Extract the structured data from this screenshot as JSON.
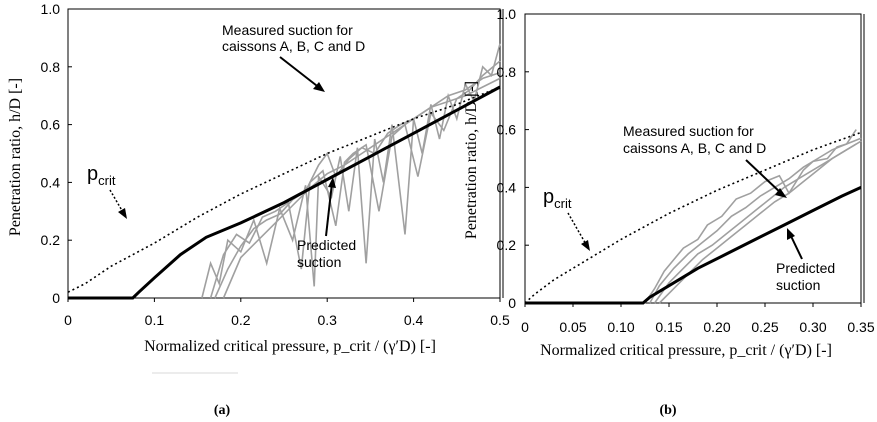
{
  "chart_data": [
    {
      "type": "line",
      "panel_label": "(a)",
      "xlabel": "Normalized critical pressure, p_crit / (γ′D) [-]",
      "ylabel": "Penetration ratio, h/D [-]",
      "xlim": [
        0,
        0.5
      ],
      "ylim": [
        0,
        1.0
      ],
      "x_ticks": [
        "0",
        "0.1",
        "0.2",
        "0.3",
        "0.4",
        "0.5"
      ],
      "y_ticks": [
        "0",
        "0.2",
        "0.4",
        "0.6",
        "0.8",
        "1.0"
      ],
      "grid": false,
      "annotations": {
        "measured_line1": "Measured suction for",
        "measured_line2": "caissons A, B, C and D",
        "predicted_line1": "Predicted",
        "predicted_line2": "suction",
        "pcrit_main": "p",
        "pcrit_sub": "crit"
      },
      "series": [
        {
          "role": "predicted",
          "color": "#000000",
          "x": [
            0.0,
            0.075,
            0.082,
            0.1,
            0.13,
            0.16,
            0.2,
            0.25,
            0.3,
            0.35,
            0.4,
            0.45,
            0.5
          ],
          "y": [
            0.0,
            0.0,
            0.02,
            0.07,
            0.15,
            0.21,
            0.26,
            0.33,
            0.41,
            0.49,
            0.57,
            0.65,
            0.73
          ]
        },
        {
          "role": "p_crit",
          "color": "#000000",
          "x": [
            0.0,
            0.02,
            0.05,
            0.1,
            0.15,
            0.2,
            0.25,
            0.3,
            0.35,
            0.4,
            0.45,
            0.5
          ],
          "y": [
            0.02,
            0.05,
            0.11,
            0.19,
            0.28,
            0.36,
            0.43,
            0.5,
            0.56,
            0.62,
            0.67,
            0.73
          ]
        },
        {
          "role": "measured",
          "color": "#a0a0a0",
          "x": [
            0.155,
            0.165,
            0.175,
            0.185,
            0.2,
            0.215,
            0.23,
            0.245,
            0.26,
            0.275,
            0.285,
            0.29,
            0.305,
            0.315,
            0.325,
            0.335,
            0.345,
            0.355,
            0.365,
            0.375,
            0.39,
            0.4,
            0.41,
            0.42,
            0.43,
            0.44,
            0.45,
            0.46,
            0.47,
            0.48,
            0.49,
            0.5
          ],
          "y": [
            0.0,
            0.12,
            0.05,
            0.2,
            0.16,
            0.27,
            0.12,
            0.31,
            0.2,
            0.39,
            0.04,
            0.42,
            0.35,
            0.49,
            0.3,
            0.52,
            0.12,
            0.55,
            0.4,
            0.6,
            0.22,
            0.62,
            0.5,
            0.67,
            0.55,
            0.7,
            0.62,
            0.74,
            0.68,
            0.8,
            0.77,
            0.88
          ]
        },
        {
          "role": "measured",
          "color": "#a0a0a0",
          "x": [
            0.165,
            0.18,
            0.195,
            0.21,
            0.225,
            0.24,
            0.255,
            0.27,
            0.28,
            0.295,
            0.31,
            0.32,
            0.33,
            0.345,
            0.36,
            0.375,
            0.39,
            0.405,
            0.42,
            0.435,
            0.45,
            0.465,
            0.48,
            0.5
          ],
          "y": [
            0.0,
            0.15,
            0.22,
            0.19,
            0.28,
            0.3,
            0.33,
            0.1,
            0.4,
            0.44,
            0.25,
            0.47,
            0.5,
            0.53,
            0.3,
            0.56,
            0.6,
            0.42,
            0.64,
            0.58,
            0.69,
            0.72,
            0.77,
            0.82
          ]
        },
        {
          "role": "measured",
          "color": "#a0a0a0",
          "x": [
            0.17,
            0.185,
            0.2,
            0.215,
            0.23,
            0.245,
            0.26,
            0.275,
            0.29,
            0.3,
            0.31,
            0.325,
            0.34,
            0.355,
            0.37,
            0.385,
            0.4,
            0.42,
            0.44,
            0.46,
            0.48,
            0.5
          ],
          "y": [
            0.0,
            0.1,
            0.18,
            0.24,
            0.27,
            0.29,
            0.34,
            0.37,
            0.46,
            0.5,
            0.42,
            0.48,
            0.52,
            0.5,
            0.57,
            0.6,
            0.62,
            0.66,
            0.68,
            0.7,
            0.73,
            0.76
          ]
        },
        {
          "role": "measured",
          "color": "#a0a0a0",
          "x": [
            0.18,
            0.2,
            0.22,
            0.24,
            0.26,
            0.28,
            0.3,
            0.32,
            0.34,
            0.36,
            0.38,
            0.4,
            0.42,
            0.44,
            0.46,
            0.48,
            0.5
          ],
          "y": [
            0.0,
            0.14,
            0.2,
            0.26,
            0.32,
            0.38,
            0.43,
            0.46,
            0.5,
            0.54,
            0.58,
            0.62,
            0.66,
            0.7,
            0.72,
            0.76,
            0.78
          ]
        }
      ]
    },
    {
      "type": "line",
      "panel_label": "(b)",
      "xlabel": "Normalized critical pressure, p_crit / (γ′D) [-]",
      "ylabel": "Penetration ratio, h/D [-]",
      "xlim": [
        0,
        0.35
      ],
      "ylim": [
        0,
        1.0
      ],
      "x_ticks": [
        "0",
        "0.05",
        "0.10",
        "0.15",
        "0.20",
        "0.25",
        "0.30",
        "0.35"
      ],
      "y_ticks": [
        "0",
        "0.2",
        "0.4",
        "0.6",
        "0.8",
        "1.0"
      ],
      "grid": false,
      "annotations": {
        "measured_line1": "Measured suction for",
        "measured_line2": "caissons A, B, C and D",
        "predicted_line1": "Predicted",
        "predicted_line2": "suction",
        "pcrit_main": "p",
        "pcrit_sub": "crit"
      },
      "series": [
        {
          "role": "predicted",
          "color": "#000000",
          "x": [
            0.0,
            0.123,
            0.13,
            0.15,
            0.18,
            0.21,
            0.24,
            0.27,
            0.3,
            0.33,
            0.35
          ],
          "y": [
            0.0,
            0.0,
            0.02,
            0.06,
            0.12,
            0.17,
            0.22,
            0.27,
            0.32,
            0.37,
            0.4
          ]
        },
        {
          "role": "p_crit",
          "color": "#000000",
          "x": [
            0.0,
            0.01,
            0.03,
            0.05,
            0.08,
            0.1,
            0.15,
            0.2,
            0.25,
            0.3,
            0.35
          ],
          "y": [
            0.0,
            0.03,
            0.08,
            0.12,
            0.18,
            0.22,
            0.31,
            0.39,
            0.46,
            0.53,
            0.59
          ]
        },
        {
          "role": "measured",
          "color": "#a0a0a0",
          "x": [
            0.125,
            0.135,
            0.145,
            0.155,
            0.165,
            0.18,
            0.19,
            0.205,
            0.22,
            0.235,
            0.25,
            0.265,
            0.275,
            0.29,
            0.3,
            0.315,
            0.325,
            0.335,
            0.345
          ],
          "y": [
            0.0,
            0.05,
            0.11,
            0.15,
            0.19,
            0.22,
            0.27,
            0.3,
            0.36,
            0.38,
            0.42,
            0.44,
            0.38,
            0.46,
            0.49,
            0.5,
            0.54,
            0.55,
            0.6
          ]
        },
        {
          "role": "measured",
          "color": "#a0a0a0",
          "x": [
            0.13,
            0.14,
            0.155,
            0.17,
            0.185,
            0.2,
            0.215,
            0.23,
            0.245,
            0.26,
            0.275,
            0.29,
            0.305,
            0.32,
            0.335,
            0.35
          ],
          "y": [
            0.0,
            0.06,
            0.12,
            0.17,
            0.21,
            0.25,
            0.3,
            0.33,
            0.37,
            0.4,
            0.43,
            0.47,
            0.5,
            0.53,
            0.55,
            0.57
          ]
        },
        {
          "role": "measured",
          "color": "#a0a0a0",
          "x": [
            0.135,
            0.15,
            0.165,
            0.18,
            0.195,
            0.21,
            0.225,
            0.24,
            0.255,
            0.27,
            0.285,
            0.3,
            0.315,
            0.33,
            0.345
          ],
          "y": [
            0.0,
            0.07,
            0.12,
            0.17,
            0.2,
            0.24,
            0.28,
            0.32,
            0.36,
            0.4,
            0.43,
            0.46,
            0.49,
            0.52,
            0.55
          ]
        },
        {
          "role": "measured",
          "color": "#a0a0a0",
          "x": [
            0.14,
            0.155,
            0.17,
            0.185,
            0.2,
            0.215,
            0.23,
            0.245,
            0.26,
            0.275,
            0.29,
            0.305,
            0.32,
            0.335,
            0.35
          ],
          "y": [
            0.0,
            0.05,
            0.1,
            0.15,
            0.19,
            0.23,
            0.27,
            0.31,
            0.35,
            0.38,
            0.42,
            0.46,
            0.5,
            0.53,
            0.56
          ]
        }
      ]
    }
  ]
}
